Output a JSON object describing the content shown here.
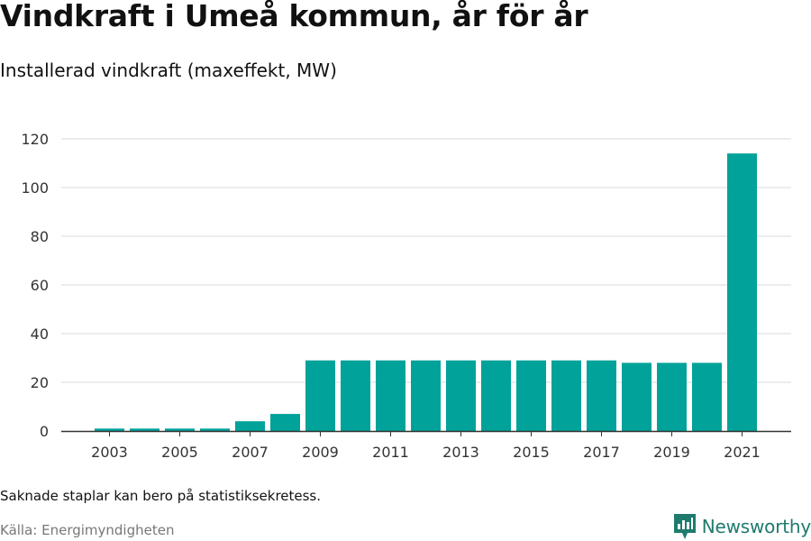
{
  "title": "Vindkraft i Umeå kommun, år för år",
  "subtitle": "Installerad vindkraft (maxeffekt, MW)",
  "note": "Saknade staplar kan bero på statistiksekretess.",
  "source": "Källa: Energimyndigheten",
  "brand": {
    "name": "Newsworthy",
    "icon": "newsworthy-logo-icon",
    "color": "#1f7a6d"
  },
  "colors": {
    "bar": "#00a29a",
    "grid": "#d9d9d9",
    "axis": "#333333",
    "tick_text": "#333333"
  },
  "chart_data": {
    "type": "bar",
    "title": "Vindkraft i Umeå kommun, år för år",
    "subtitle": "Installerad vindkraft (maxeffekt, MW)",
    "xlabel": "",
    "ylabel": "",
    "x": [
      2003,
      2004,
      2005,
      2006,
      2007,
      2008,
      2009,
      2010,
      2011,
      2012,
      2013,
      2014,
      2015,
      2016,
      2017,
      2018,
      2019,
      2020,
      2021
    ],
    "values": [
      1,
      1,
      1,
      1,
      4,
      7,
      29,
      29,
      29,
      29,
      29,
      29,
      29,
      29,
      29,
      28,
      28,
      28,
      114
    ],
    "x_tick_labels": [
      "2003",
      "2005",
      "2007",
      "2009",
      "2011",
      "2013",
      "2015",
      "2017",
      "2019",
      "2021"
    ],
    "y_ticks": [
      0,
      20,
      40,
      60,
      80,
      100,
      120
    ],
    "ylim": [
      0,
      120
    ],
    "grid": true,
    "legend": "none"
  }
}
